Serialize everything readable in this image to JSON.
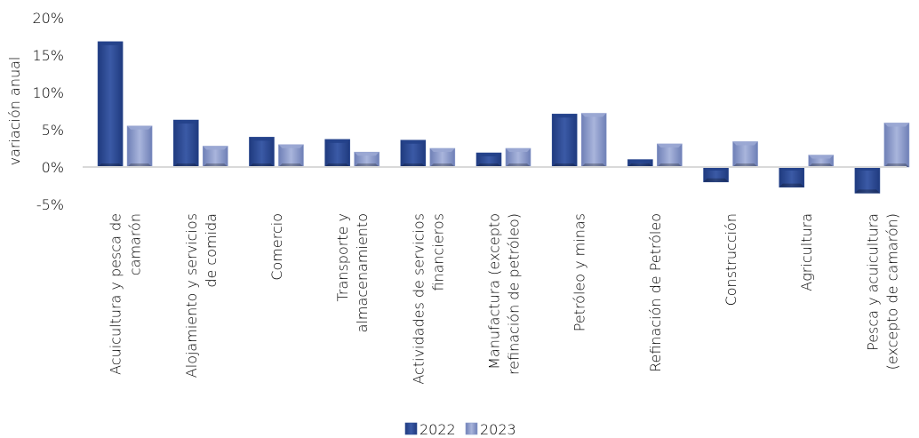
{
  "chart_data": {
    "type": "bar",
    "ylabel": "variación anual",
    "ylim": [
      -5,
      20
    ],
    "yticks": [
      "20%",
      "15%",
      "10%",
      "5%",
      "0%",
      "-5%"
    ],
    "ytick_values": [
      20,
      15,
      10,
      5,
      0,
      -5
    ],
    "categories": [
      [
        "Acuicultura y pesca de",
        "camarón"
      ],
      [
        "Alojamiento y servicios",
        "de comida"
      ],
      [
        "Comercio"
      ],
      [
        "Transporte y",
        "almacenamiento"
      ],
      [
        "Actividades de servicios",
        "financieros"
      ],
      [
        "Manufactura (excepto",
        "refinación de petróleo)"
      ],
      [
        "Petróleo y minas"
      ],
      [
        "Refinación de Petróleo"
      ],
      [
        "Construcción"
      ],
      [
        "Agricultura"
      ],
      [
        "Pesca y acuicultura",
        "(excepto de camarón)"
      ]
    ],
    "series": [
      {
        "name": "2022",
        "color": "#2f4d94",
        "values": [
          16.8,
          6.3,
          4.0,
          3.7,
          3.6,
          1.9,
          7.1,
          1.0,
          -2.0,
          -2.7,
          -3.5
        ]
      },
      {
        "name": "2023",
        "color": "#8e9dcc",
        "values": [
          5.5,
          2.8,
          3.0,
          2.0,
          2.5,
          2.5,
          7.2,
          3.1,
          3.4,
          1.6,
          5.9
        ]
      }
    ],
    "legend_position": "bottom",
    "grid": false
  }
}
